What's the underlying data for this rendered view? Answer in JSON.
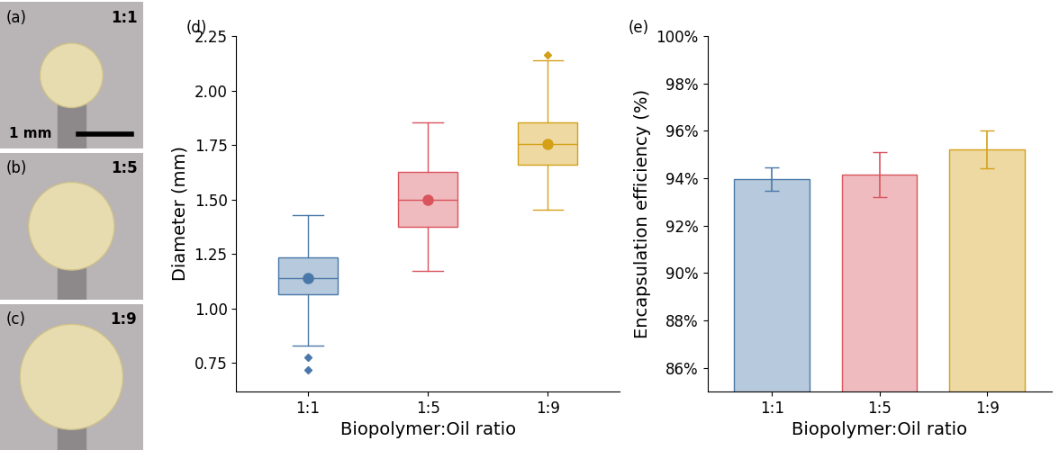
{
  "chart_data": [
    {
      "type": "box",
      "annotations": [
        "(d)"
      ],
      "x_label": "Biopolymer:Oil ratio",
      "y_label": "Diameter (mm)",
      "categories": [
        "1:1",
        "1:5",
        "1:9"
      ],
      "medians": [
        1.14,
        1.5,
        1.755
      ],
      "q1": [
        1.065,
        1.375,
        1.66
      ],
      "q3": [
        1.235,
        1.625,
        1.855
      ],
      "whisker_low": [
        0.83,
        1.175,
        1.455
      ],
      "whisker_high": [
        1.43,
        1.855,
        2.14
      ],
      "means": [
        1.14,
        1.5,
        1.755
      ],
      "outliers": [
        [
          0.775,
          0.72
        ],
        [],
        [
          2.165
        ]
      ],
      "colors": [
        "#4a78a8",
        "#d9545d",
        "#d4a017"
      ],
      "ylim": [
        0.62,
        2.25
      ],
      "yticks": [
        0.75,
        {
          "value": 1.0,
          "label": "1.00"
        },
        1.25,
        {
          "value": 1.5,
          "label": "1.50"
        },
        1.75,
        {
          "value": 2.0,
          "label": "2.00"
        },
        2.25
      ]
    },
    {
      "type": "bar",
      "annotations": [
        "(e)"
      ],
      "x_label": "Biopolymer:Oil ratio",
      "y_label": "Encapsulation efficiency (%)",
      "categories": [
        "1:1",
        "1:5",
        "1:9"
      ],
      "values": [
        93.95,
        94.15,
        95.2
      ],
      "errors": [
        0.5,
        0.95,
        0.8
      ],
      "colors": [
        "#4a78a8",
        "#d9545d",
        "#d4a017"
      ],
      "ylim": [
        85,
        100
      ],
      "yticks": [
        {
          "value": 86,
          "label": "86%"
        },
        {
          "value": 88,
          "label": "88%"
        },
        {
          "value": 90,
          "label": "90%"
        },
        {
          "value": 92,
          "label": "92%"
        },
        {
          "value": 94,
          "label": "94%"
        },
        {
          "value": 96,
          "label": "96%"
        },
        {
          "value": 98,
          "label": "98%"
        },
        {
          "value": 100,
          "label": "100%"
        }
      ]
    }
  ],
  "images": [
    {
      "panel": "(a)",
      "label": "1:1",
      "scale_bar": "1 mm"
    },
    {
      "panel": "(b)",
      "label": "1:5"
    },
    {
      "panel": "(c)",
      "label": "1:9"
    }
  ]
}
